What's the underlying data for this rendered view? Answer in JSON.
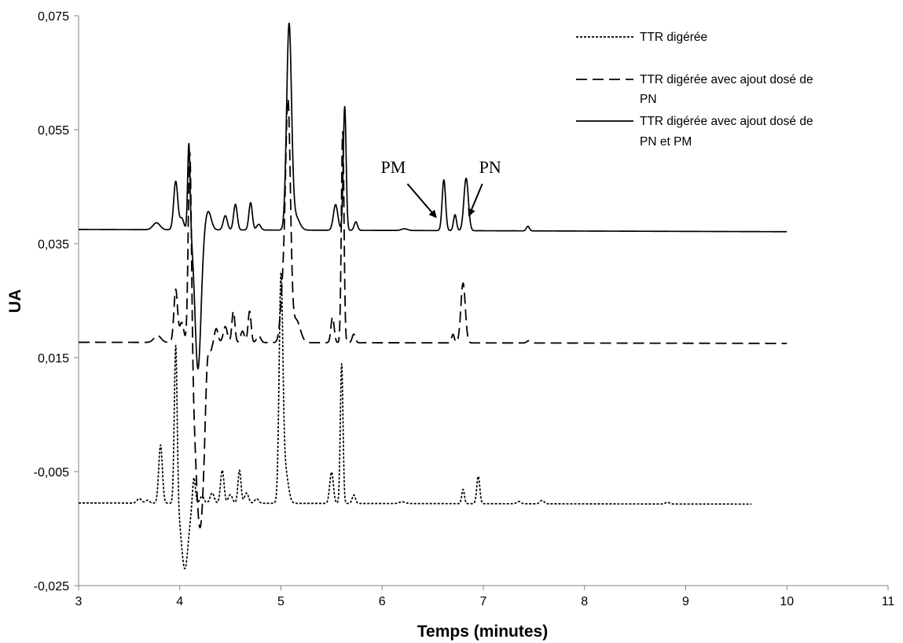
{
  "chart_data": {
    "type": "line",
    "title": "",
    "xlabel": "Temps (minutes)",
    "ylabel": "UA",
    "xlim": [
      3,
      11
    ],
    "ylim": [
      -0.025,
      0.075
    ],
    "xticks": [
      3,
      4,
      5,
      6,
      7,
      8,
      9,
      10,
      11
    ],
    "xtick_labels": [
      "3",
      "4",
      "5",
      "6",
      "7",
      "8",
      "9",
      "10",
      "11"
    ],
    "yticks": [
      -0.025,
      -0.005,
      0.015,
      0.035,
      0.055,
      0.075
    ],
    "ytick_labels": [
      "-0,025",
      "-0,005",
      "0,015",
      "0,035",
      "0,055",
      "0,075"
    ],
    "grid": false,
    "legend_position": "top-right",
    "series": [
      {
        "name": "TTR digérée",
        "style": "dotted",
        "color": "#000000",
        "legend_lines": [
          "TTR digérée"
        ],
        "baseline": -0.0105,
        "xrange": [
          3,
          9.65
        ],
        "drift": [
          [
            3,
            -0.0105
          ],
          [
            9.65,
            -0.0107
          ]
        ],
        "features": [
          [
            3.6,
            0.0008,
            0.022
          ],
          [
            3.68,
            0.0005,
            0.02
          ],
          [
            3.81,
            0.0102,
            0.018
          ],
          [
            3.96,
            0.028,
            0.014
          ],
          [
            4.05,
            -0.0115,
            0.034
          ],
          [
            4.14,
            0.0048,
            0.014
          ],
          [
            4.22,
            0.0012,
            0.02
          ],
          [
            4.32,
            0.0018,
            0.02
          ],
          [
            4.42,
            0.0058,
            0.017
          ],
          [
            4.5,
            0.0015,
            0.02
          ],
          [
            4.59,
            0.0058,
            0.015
          ],
          [
            4.66,
            0.0018,
            0.02
          ],
          [
            4.76,
            0.0008,
            0.02
          ],
          [
            5.0,
            0.038,
            0.018
          ],
          [
            5.04,
            0.006,
            0.03
          ],
          [
            5.5,
            0.0055,
            0.018
          ],
          [
            5.6,
            0.0245,
            0.013
          ],
          [
            5.72,
            0.0015,
            0.016
          ],
          [
            6.2,
            0.0003,
            0.03
          ],
          [
            6.8,
            0.0025,
            0.013
          ],
          [
            6.95,
            0.0048,
            0.015
          ],
          [
            7.35,
            0.0004,
            0.02
          ],
          [
            7.58,
            0.0006,
            0.02
          ],
          [
            8.82,
            0.0003,
            0.02
          ]
        ]
      },
      {
        "name": "TTR digérée avec ajout dosé de PN",
        "style": "dashed",
        "color": "#000000",
        "legend_lines": [
          "TTR digérée avec ajout dosé de",
          "PN"
        ],
        "baseline": 0.0177,
        "xrange": [
          3,
          10
        ],
        "drift": [
          [
            3,
            0.0177
          ],
          [
            10,
            0.0175
          ]
        ],
        "features": [
          [
            3.78,
            0.0012,
            0.035
          ],
          [
            3.96,
            0.0093,
            0.018
          ],
          [
            4.02,
            0.0035,
            0.02
          ],
          [
            4.1,
            0.036,
            0.016
          ],
          [
            4.2,
            -0.0325,
            0.045
          ],
          [
            4.27,
            0.0055,
            0.016
          ],
          [
            4.36,
            0.0025,
            0.018
          ],
          [
            4.45,
            0.0028,
            0.02
          ],
          [
            4.53,
            0.0055,
            0.015
          ],
          [
            4.62,
            0.002,
            0.018
          ],
          [
            4.69,
            0.0055,
            0.015
          ],
          [
            4.78,
            0.0012,
            0.02
          ],
          [
            5.02,
            0.009,
            0.025
          ],
          [
            5.07,
            0.041,
            0.024
          ],
          [
            5.15,
            0.004,
            0.04
          ],
          [
            5.51,
            0.0045,
            0.016
          ],
          [
            5.61,
            0.037,
            0.013
          ],
          [
            5.72,
            0.0015,
            0.016
          ],
          [
            6.7,
            0.0015,
            0.013
          ],
          [
            6.8,
            0.0105,
            0.022
          ],
          [
            7.45,
            0.0004,
            0.02
          ]
        ]
      },
      {
        "name": "TTR digérée avec ajout dosé de PN et PM",
        "style": "solid",
        "color": "#000000",
        "legend_lines": [
          "TTR digérée avec ajout dosé de",
          "PN et PM"
        ],
        "baseline": 0.0375,
        "xrange": [
          3,
          10
        ],
        "drift": [
          [
            3,
            0.0375
          ],
          [
            10,
            0.0371
          ]
        ],
        "features": [
          [
            3.77,
            0.0012,
            0.035
          ],
          [
            3.96,
            0.0085,
            0.02
          ],
          [
            4.02,
            0.002,
            0.02
          ],
          [
            4.09,
            0.0154,
            0.012
          ],
          [
            4.18,
            -0.0244,
            0.03
          ],
          [
            4.28,
            0.0033,
            0.03
          ],
          [
            4.45,
            0.0025,
            0.02
          ],
          [
            4.55,
            0.0045,
            0.018
          ],
          [
            4.7,
            0.0048,
            0.017
          ],
          [
            4.78,
            0.001,
            0.02
          ],
          [
            5.08,
            0.0355,
            0.024
          ],
          [
            5.14,
            0.0025,
            0.04
          ],
          [
            5.54,
            0.0045,
            0.022
          ],
          [
            5.63,
            0.0217,
            0.014
          ],
          [
            5.74,
            0.0015,
            0.016
          ],
          [
            6.22,
            0.0003,
            0.03
          ],
          [
            6.61,
            0.0089,
            0.017
          ],
          [
            6.72,
            0.0028,
            0.015
          ],
          [
            6.83,
            0.0092,
            0.022
          ],
          [
            7.44,
            0.0008,
            0.015
          ]
        ]
      }
    ],
    "annotations": [
      {
        "text": "PM",
        "arrow_from": [
          6.25,
          0.0455
        ],
        "arrow_to": [
          6.53,
          0.0397
        ]
      },
      {
        "text": "PN",
        "arrow_from": [
          6.99,
          0.0455
        ],
        "arrow_to": [
          6.86,
          0.04
        ]
      }
    ]
  }
}
